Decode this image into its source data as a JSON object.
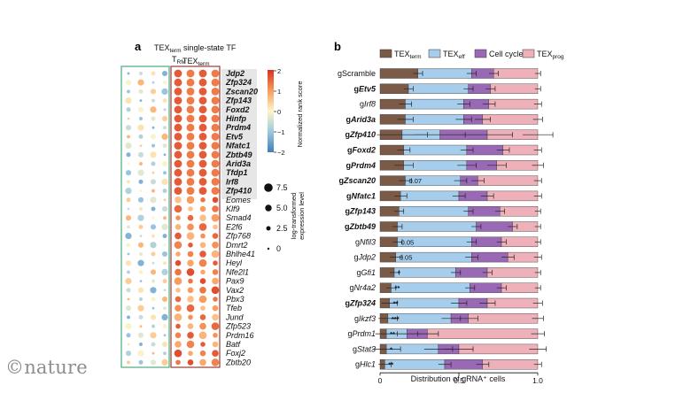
{
  "watermark": "©nature",
  "panel_a": {
    "letter": "a",
    "title_main": "TEX",
    "title_sub": "term",
    "title_rest": " single-state TF",
    "group1_main": "T",
    "group1_sub": "RM",
    "group2_main": "TEX",
    "group2_sub": "term",
    "genes": [
      "Jdp2",
      "Zfp324",
      "Zscan20",
      "Zfp143",
      "Foxd2",
      "Hinfp",
      "Prdm4",
      "Etv5",
      "Nfatc1",
      "Zbtb49",
      "Arid3a",
      "Tfdp1",
      "Irf8",
      "Zfp410",
      "Eomes",
      "Klf9",
      "Smad4",
      "E2f6",
      "Zfp768",
      "Dmrt2",
      "Bhlhe41",
      "Heyl",
      "Nfe2l1",
      "Pax9",
      "Vax2",
      "Pbx3",
      "Tfeb",
      "Jund",
      "Zfp523",
      "Prdm16",
      "Batf",
      "Foxj2",
      "Zbtb20"
    ],
    "colorbar_label": "Normalized rank score",
    "colorbar_ticks": [
      "2",
      "1",
      "0",
      "−1",
      "−2"
    ],
    "colors": {
      "high": "#d7301f",
      "mid": "#fff5c8",
      "low": "#3f7fb8",
      "trm_box": "#4bab7a",
      "tex_box": "#9a3a3a"
    },
    "size_legend_title_1": "log-transformed",
    "size_legend_title_2": "expression level",
    "size_legend": [
      "7.5",
      "5.0",
      "2.5",
      "0"
    ]
  },
  "panel_b": {
    "letter": "b",
    "xlabel": "Distribution of gRNA⁺ cells",
    "chart_data": {
      "type": "bar",
      "orientation": "horizontal-stacked",
      "xlim": [
        0,
        1.0
      ],
      "xticks": [
        "0",
        "0.5",
        "1.0"
      ],
      "xlabel": "Distribution of gRNA⁺ cells",
      "legend_position": "top",
      "categories": [
        "gScramble",
        "gEtv5",
        "gIrf8",
        "gArid3a",
        "gZfp410",
        "gFoxd2",
        "gPrdm4",
        "gZscan20",
        "gNfatc1",
        "gZfp143",
        "gZbtb49",
        "gNfil3",
        "gJdp2",
        "gGfi1",
        "gNr4a2",
        "gZfp324",
        "gIkzf3",
        "gPrdm1",
        "gStat3",
        "gHlc1"
      ],
      "series": [
        {
          "name": "TEX",
          "sub": "term",
          "color": "#7b5b47",
          "values": [
            0.24,
            0.18,
            0.16,
            0.16,
            0.14,
            0.15,
            0.15,
            0.16,
            0.13,
            0.12,
            0.11,
            0.11,
            0.1,
            0.09,
            0.07,
            0.06,
            0.05,
            0.04,
            0.04,
            0.03
          ]
        },
        {
          "name": "TEX",
          "sub": "eff",
          "color": "#a7cdec",
          "values": [
            0.34,
            0.38,
            0.37,
            0.37,
            0.24,
            0.4,
            0.4,
            0.35,
            0.37,
            0.44,
            0.5,
            0.47,
            0.48,
            0.39,
            0.5,
            0.44,
            0.4,
            0.13,
            0.33,
            0.38
          ]
        },
        {
          "name": "Cell cycle",
          "sub": "",
          "color": "#9a69b6",
          "values": [
            0.14,
            0.14,
            0.16,
            0.12,
            0.3,
            0.23,
            0.19,
            0.11,
            0.18,
            0.2,
            0.23,
            0.19,
            0.23,
            0.2,
            0.2,
            0.18,
            0.11,
            0.13,
            0.13,
            0.24
          ]
        },
        {
          "name": "TEX",
          "sub": "prog",
          "color": "#eeb0b9",
          "values": [
            0.28,
            0.3,
            0.31,
            0.35,
            0.32,
            0.22,
            0.26,
            0.38,
            0.32,
            0.24,
            0.16,
            0.23,
            0.19,
            0.32,
            0.23,
            0.32,
            0.44,
            0.7,
            0.5,
            0.35
          ]
        }
      ],
      "errors": [
        0.03,
        0.03,
        0.04,
        0.05,
        0.16,
        0.04,
        0.06,
        0.04,
        0.04,
        0.03,
        0.03,
        0.03,
        0.04,
        0.03,
        0.03,
        0.05,
        0.06,
        0.07,
        0.09,
        0.04
      ],
      "annotations": [
        "",
        "",
        "",
        "",
        "",
        "",
        "",
        "0.07",
        "",
        "",
        "",
        "0.05",
        "0.05",
        "*",
        "**",
        "**",
        "***",
        "**",
        "*",
        "**"
      ]
    }
  }
}
